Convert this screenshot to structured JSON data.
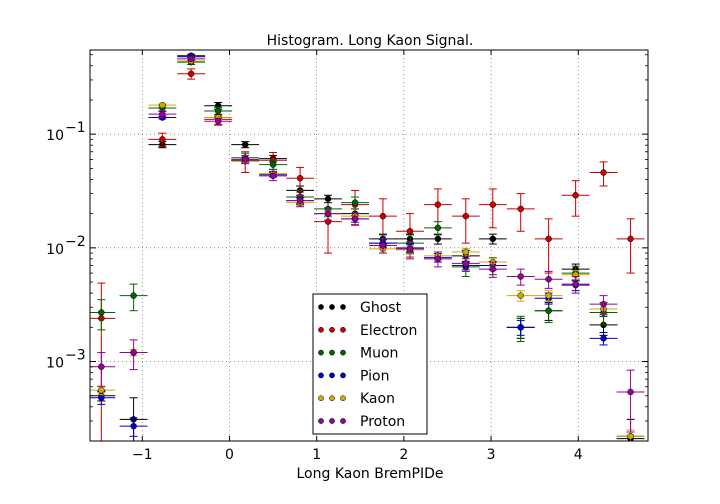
{
  "chart_data": {
    "type": "scatter",
    "title": "Histogram. Long Kaon Signal.",
    "xlabel": "Long Kaon BremPIDe",
    "ylabel": "",
    "xlim": [
      -1.6,
      4.8
    ],
    "ylim": [
      0.0002,
      0.55
    ],
    "yscale": "log",
    "grid": true,
    "legend_position": "bottom-center",
    "x_ticks": [
      {
        "value": -1,
        "label": "−1"
      },
      {
        "value": 0,
        "label": "0"
      },
      {
        "value": 1,
        "label": "1"
      },
      {
        "value": 2,
        "label": "2"
      },
      {
        "value": 3,
        "label": "3"
      },
      {
        "value": 4,
        "label": "4"
      }
    ],
    "y_ticks": [
      {
        "value": 0.001,
        "base": "10",
        "exp": "−3"
      },
      {
        "value": 0.01,
        "base": "10",
        "exp": "−2"
      },
      {
        "value": 0.1,
        "base": "10",
        "exp": "−1"
      }
    ],
    "x_bin_halfwidth": 0.16,
    "series": [
      {
        "name": "Ghost",
        "color": "#000000",
        "points": [
          [
            -1.47,
            0.0005,
            5e-05
          ],
          [
            -1.1,
            0.00031,
            0.00017
          ],
          [
            -0.77,
            0.081,
            0.005
          ],
          [
            -0.44,
            0.49,
            0.015
          ],
          [
            -0.13,
            0.178,
            0.012
          ],
          [
            0.18,
            0.081,
            0.005
          ],
          [
            0.5,
            0.061,
            0.004
          ],
          [
            0.81,
            0.032,
            0.003
          ],
          [
            1.13,
            0.027,
            0.002
          ],
          [
            1.44,
            0.02,
            0.002
          ],
          [
            1.76,
            0.012,
            0.0012
          ],
          [
            2.07,
            0.012,
            0.0012
          ],
          [
            2.39,
            0.012,
            0.0012
          ],
          [
            2.71,
            0.0085,
            0.001
          ],
          [
            3.02,
            0.012,
            0.0012
          ],
          [
            3.34,
            0.002,
            0.0004
          ],
          [
            3.66,
            0.0028,
            0.0005
          ],
          [
            3.97,
            0.0065,
            0.0007
          ],
          [
            4.29,
            0.0021,
            0.0004
          ],
          [
            4.6,
            0.00021,
            0.0001
          ]
        ]
      },
      {
        "name": "Electron",
        "color": "#cc0000",
        "points": [
          [
            -1.47,
            0.0024,
            0.0025
          ],
          [
            -0.77,
            0.09,
            0.012
          ],
          [
            -0.44,
            0.34,
            0.035
          ],
          [
            -0.13,
            0.135,
            0.015
          ],
          [
            0.18,
            0.058,
            0.012
          ],
          [
            0.5,
            0.059,
            0.01
          ],
          [
            0.81,
            0.041,
            0.01
          ],
          [
            1.13,
            0.017,
            0.008
          ],
          [
            1.44,
            0.024,
            0.008
          ],
          [
            1.76,
            0.019,
            0.008
          ],
          [
            2.07,
            0.014,
            0.006
          ],
          [
            2.39,
            0.024,
            0.009
          ],
          [
            2.71,
            0.019,
            0.008
          ],
          [
            3.02,
            0.024,
            0.009
          ],
          [
            3.34,
            0.022,
            0.008
          ],
          [
            3.66,
            0.012,
            0.006
          ],
          [
            3.97,
            0.029,
            0.01
          ],
          [
            4.29,
            0.046,
            0.011
          ],
          [
            4.6,
            0.012,
            0.006
          ]
        ]
      },
      {
        "name": "Muon",
        "color": "#006600",
        "points": [
          [
            -1.47,
            0.0027,
            0.0008
          ],
          [
            -1.1,
            0.0038,
            0.001
          ],
          [
            -0.77,
            0.17,
            0.012
          ],
          [
            -0.44,
            0.43,
            0.02
          ],
          [
            -0.13,
            0.16,
            0.012
          ],
          [
            0.18,
            0.062,
            0.006
          ],
          [
            0.5,
            0.054,
            0.005
          ],
          [
            0.81,
            0.028,
            0.004
          ],
          [
            1.13,
            0.022,
            0.003
          ],
          [
            1.44,
            0.025,
            0.003
          ],
          [
            1.76,
            0.011,
            0.002
          ],
          [
            2.07,
            0.011,
            0.002
          ],
          [
            2.39,
            0.015,
            0.002
          ],
          [
            2.71,
            0.0068,
            0.0012
          ],
          [
            3.02,
            0.007,
            0.0012
          ],
          [
            3.34,
            0.002,
            0.0005
          ],
          [
            3.66,
            0.0028,
            0.0006
          ],
          [
            3.97,
            0.006,
            0.0009
          ],
          [
            4.29,
            0.0027,
            0.0006
          ]
        ]
      },
      {
        "name": "Pion",
        "color": "#0000cc",
        "points": [
          [
            -1.47,
            0.00048,
            6e-05
          ],
          [
            -1.1,
            0.00027,
            5e-05
          ],
          [
            -0.77,
            0.14,
            0.004
          ],
          [
            -0.44,
            0.48,
            0.008
          ],
          [
            -0.13,
            0.14,
            0.004
          ],
          [
            0.18,
            0.059,
            0.002
          ],
          [
            0.5,
            0.044,
            0.002
          ],
          [
            0.81,
            0.026,
            0.0015
          ],
          [
            1.13,
            0.02,
            0.0012
          ],
          [
            1.44,
            0.018,
            0.0012
          ],
          [
            1.76,
            0.011,
            0.0008
          ],
          [
            2.07,
            0.01,
            0.0008
          ],
          [
            2.39,
            0.0082,
            0.0007
          ],
          [
            2.71,
            0.007,
            0.0006
          ],
          [
            3.02,
            0.007,
            0.0006
          ],
          [
            3.34,
            0.002,
            0.0003
          ],
          [
            3.66,
            0.0036,
            0.0004
          ],
          [
            3.97,
            0.0047,
            0.0005
          ],
          [
            4.29,
            0.0016,
            0.0002
          ],
          [
            4.6,
            0.00022,
            3e-05
          ]
        ]
      },
      {
        "name": "Kaon",
        "color": "#ccaa00",
        "points": [
          [
            -1.47,
            0.00056,
            5e-05
          ],
          [
            -1.1,
            0.0012,
            8e-05
          ],
          [
            -0.77,
            0.18,
            0.004
          ],
          [
            -0.44,
            0.44,
            0.008
          ],
          [
            -0.13,
            0.14,
            0.004
          ],
          [
            0.18,
            0.058,
            0.002
          ],
          [
            0.5,
            0.045,
            0.002
          ],
          [
            0.81,
            0.025,
            0.0015
          ],
          [
            1.13,
            0.02,
            0.0012
          ],
          [
            1.44,
            0.019,
            0.0012
          ],
          [
            1.76,
            0.0098,
            0.0008
          ],
          [
            2.07,
            0.0096,
            0.0008
          ],
          [
            2.39,
            0.0085,
            0.0007
          ],
          [
            2.71,
            0.0092,
            0.0007
          ],
          [
            3.02,
            0.0075,
            0.0006
          ],
          [
            3.34,
            0.0038,
            0.0004
          ],
          [
            3.66,
            0.0038,
            0.0004
          ],
          [
            3.97,
            0.0058,
            0.0005
          ],
          [
            4.29,
            0.0029,
            0.0003
          ],
          [
            4.6,
            0.00022,
            3e-05
          ]
        ]
      },
      {
        "name": "Proton",
        "color": "#990099",
        "points": [
          [
            -1.47,
            0.0009,
            0.0003
          ],
          [
            -1.1,
            0.0012,
            0.00035
          ],
          [
            -0.77,
            0.15,
            0.01
          ],
          [
            -0.44,
            0.46,
            0.02
          ],
          [
            -0.13,
            0.13,
            0.008
          ],
          [
            0.18,
            0.06,
            0.005
          ],
          [
            0.5,
            0.043,
            0.004
          ],
          [
            0.81,
            0.026,
            0.003
          ],
          [
            1.13,
            0.02,
            0.0025
          ],
          [
            1.44,
            0.018,
            0.0022
          ],
          [
            1.76,
            0.0105,
            0.0015
          ],
          [
            2.07,
            0.0098,
            0.0015
          ],
          [
            2.39,
            0.008,
            0.0012
          ],
          [
            2.71,
            0.0073,
            0.0011
          ],
          [
            3.02,
            0.0065,
            0.001
          ],
          [
            3.34,
            0.0056,
            0.0009
          ],
          [
            3.66,
            0.0053,
            0.0009
          ],
          [
            3.97,
            0.0048,
            0.0008
          ],
          [
            4.29,
            0.0032,
            0.0006
          ],
          [
            4.6,
            0.00054,
            0.0003
          ]
        ]
      }
    ]
  }
}
